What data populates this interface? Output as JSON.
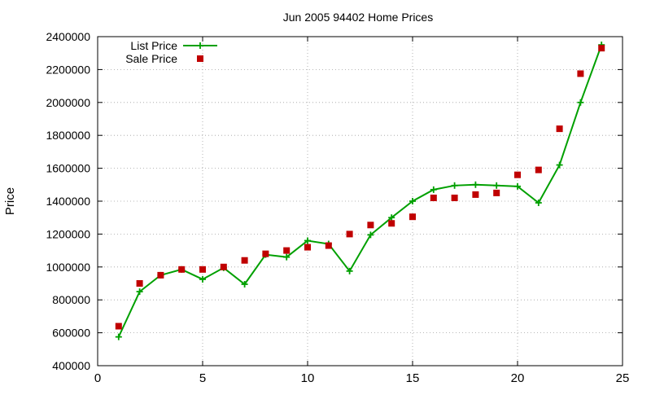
{
  "chart_data": {
    "type": "line",
    "title": "Jun 2005 94402 Home Prices",
    "xlabel": "",
    "ylabel": "Price",
    "xlim": [
      0,
      25
    ],
    "ylim": [
      400000,
      2400000
    ],
    "xticks": [
      0,
      5,
      10,
      15,
      20,
      25
    ],
    "yticks": [
      400000,
      600000,
      800000,
      1000000,
      1200000,
      1400000,
      1600000,
      1800000,
      2000000,
      2200000,
      2400000
    ],
    "grid": true,
    "legend_position": "top-left",
    "x": [
      1,
      2,
      3,
      4,
      5,
      6,
      7,
      8,
      9,
      10,
      11,
      12,
      13,
      14,
      15,
      16,
      17,
      18,
      19,
      20,
      21,
      22,
      23,
      24
    ],
    "series": [
      {
        "name": "List Price",
        "style": "line-plus",
        "color": "#00a000",
        "values": [
          575000,
          850000,
          950000,
          985000,
          925000,
          995000,
          895000,
          1075000,
          1060000,
          1160000,
          1140000,
          975000,
          1195000,
          1300000,
          1400000,
          1470000,
          1495000,
          1500000,
          1495000,
          1490000,
          1390000,
          1620000,
          2000000,
          2350000
        ]
      },
      {
        "name": "Sale Price",
        "style": "square",
        "color": "#c00000",
        "values": [
          640000,
          900000,
          950000,
          985000,
          985000,
          1000000,
          1040000,
          1080000,
          1100000,
          1120000,
          1130000,
          1200000,
          1255000,
          1265000,
          1305000,
          1420000,
          1420000,
          1440000,
          1450000,
          1560000,
          1590000,
          1840000,
          2175000,
          2330000
        ]
      }
    ]
  }
}
